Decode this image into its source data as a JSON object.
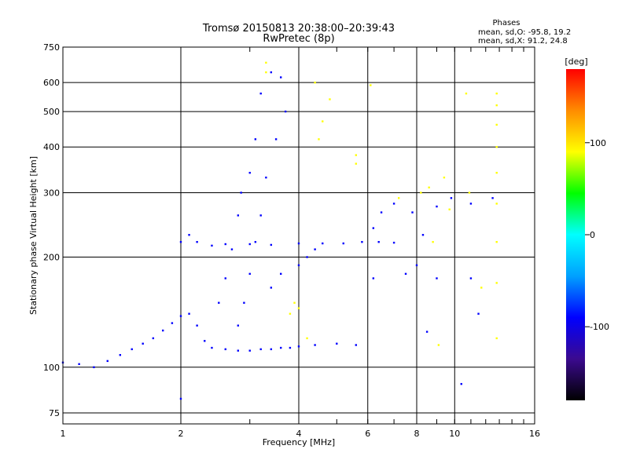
{
  "chart_data": {
    "type": "scatter",
    "title": "Tromsø 20150813 20:38:00–20:39:43",
    "subtitle": "RwPretec (8p)",
    "xlabel": "Frequency [MHz]",
    "ylabel": "Stationary phase Virtual Height [km]",
    "x_scale": "log",
    "y_scale": "log",
    "xlim": [
      1,
      16
    ],
    "ylim": [
      70,
      750
    ],
    "x_ticks": [
      1,
      2,
      4,
      6,
      8,
      10,
      16
    ],
    "y_ticks": [
      75,
      100,
      200,
      300,
      400,
      500,
      600,
      750
    ],
    "grid": true,
    "phase_stats": {
      "header": "Phases",
      "line_o": "mean, sd,O: -95.8, 19.2",
      "line_x": "mean, sd,X:  91.2, 24.8"
    },
    "colorbar": {
      "label": "[deg]",
      "range": [
        -180,
        180
      ],
      "ticks": [
        100,
        0,
        -100
      ],
      "colors": [
        "#000000",
        "#3b0a8f",
        "#0000ff",
        "#00a0ff",
        "#00ffff",
        "#00ff00",
        "#ffff00",
        "#ff8c00",
        "#ff0000"
      ]
    },
    "series": [
      {
        "mode": "O",
        "color_value": -100,
        "points": [
          [
            1.0,
            103
          ],
          [
            1.1,
            102
          ],
          [
            1.2,
            100
          ],
          [
            1.3,
            104
          ],
          [
            1.4,
            108
          ],
          [
            1.5,
            112
          ],
          [
            1.6,
            116
          ],
          [
            1.7,
            120
          ],
          [
            1.8,
            126
          ],
          [
            1.9,
            132
          ],
          [
            2.0,
            138
          ],
          [
            2.1,
            140
          ],
          [
            2.2,
            130
          ],
          [
            2.3,
            118
          ],
          [
            2.4,
            113
          ],
          [
            2.6,
            112
          ],
          [
            2.8,
            111
          ],
          [
            3.0,
            111
          ],
          [
            3.2,
            112
          ],
          [
            3.4,
            112
          ],
          [
            3.6,
            113
          ],
          [
            3.8,
            113
          ],
          [
            4.0,
            114
          ],
          [
            4.4,
            115
          ],
          [
            5.0,
            116
          ],
          [
            5.6,
            115
          ],
          [
            2.5,
            150
          ],
          [
            2.6,
            175
          ],
          [
            2.7,
            210
          ],
          [
            2.8,
            260
          ],
          [
            2.85,
            300
          ],
          [
            3.0,
            340
          ],
          [
            3.1,
            420
          ],
          [
            3.2,
            560
          ],
          [
            3.4,
            640
          ],
          [
            3.6,
            620
          ],
          [
            3.7,
            500
          ],
          [
            3.5,
            420
          ],
          [
            3.3,
            330
          ],
          [
            3.2,
            260
          ],
          [
            3.1,
            220
          ],
          [
            3.0,
            180
          ],
          [
            2.9,
            150
          ],
          [
            2.8,
            130
          ],
          [
            2.0,
            220
          ],
          [
            2.1,
            230
          ],
          [
            2.2,
            220
          ],
          [
            2.4,
            215
          ],
          [
            2.6,
            217
          ],
          [
            3.0,
            217
          ],
          [
            3.4,
            216
          ],
          [
            4.0,
            218
          ],
          [
            4.6,
            218
          ],
          [
            5.2,
            218
          ],
          [
            5.8,
            220
          ],
          [
            6.4,
            220
          ],
          [
            7.0,
            219
          ],
          [
            4.0,
            190
          ],
          [
            4.2,
            200
          ],
          [
            4.4,
            210
          ],
          [
            3.6,
            180
          ],
          [
            3.4,
            165
          ],
          [
            6.2,
            240
          ],
          [
            6.5,
            265
          ],
          [
            7.0,
            280
          ],
          [
            7.8,
            265
          ],
          [
            8.3,
            230
          ],
          [
            9.0,
            275
          ],
          [
            9.8,
            290
          ],
          [
            11.0,
            280
          ],
          [
            12.5,
            290
          ],
          [
            7.5,
            180
          ],
          [
            8.0,
            190
          ],
          [
            9.0,
            175
          ],
          [
            11.0,
            175
          ],
          [
            6.2,
            175
          ],
          [
            8.5,
            125
          ],
          [
            11.5,
            140
          ],
          [
            10.4,
            90
          ],
          [
            2.0,
            82
          ]
        ]
      },
      {
        "mode": "X",
        "color_value": 110,
        "points": [
          [
            3.9,
            150
          ],
          [
            4.0,
            145
          ],
          [
            3.8,
            140
          ],
          [
            4.2,
            120
          ],
          [
            4.5,
            420
          ],
          [
            4.6,
            470
          ],
          [
            4.8,
            540
          ],
          [
            4.4,
            600
          ],
          [
            5.6,
            380
          ],
          [
            5.6,
            360
          ],
          [
            6.1,
            590
          ],
          [
            8.6,
            310
          ],
          [
            8.8,
            220
          ],
          [
            9.1,
            115
          ],
          [
            9.4,
            330
          ],
          [
            10.9,
            300
          ],
          [
            11.7,
            165
          ],
          [
            12.8,
            560
          ],
          [
            12.8,
            520
          ],
          [
            12.8,
            460
          ],
          [
            12.8,
            400
          ],
          [
            12.8,
            340
          ],
          [
            12.8,
            280
          ],
          [
            12.8,
            220
          ],
          [
            12.8,
            170
          ],
          [
            12.8,
            120
          ],
          [
            7.2,
            290
          ],
          [
            8.2,
            300
          ],
          [
            9.7,
            270
          ],
          [
            10.7,
            560
          ],
          [
            3.3,
            680
          ],
          [
            3.3,
            640
          ]
        ]
      }
    ]
  }
}
